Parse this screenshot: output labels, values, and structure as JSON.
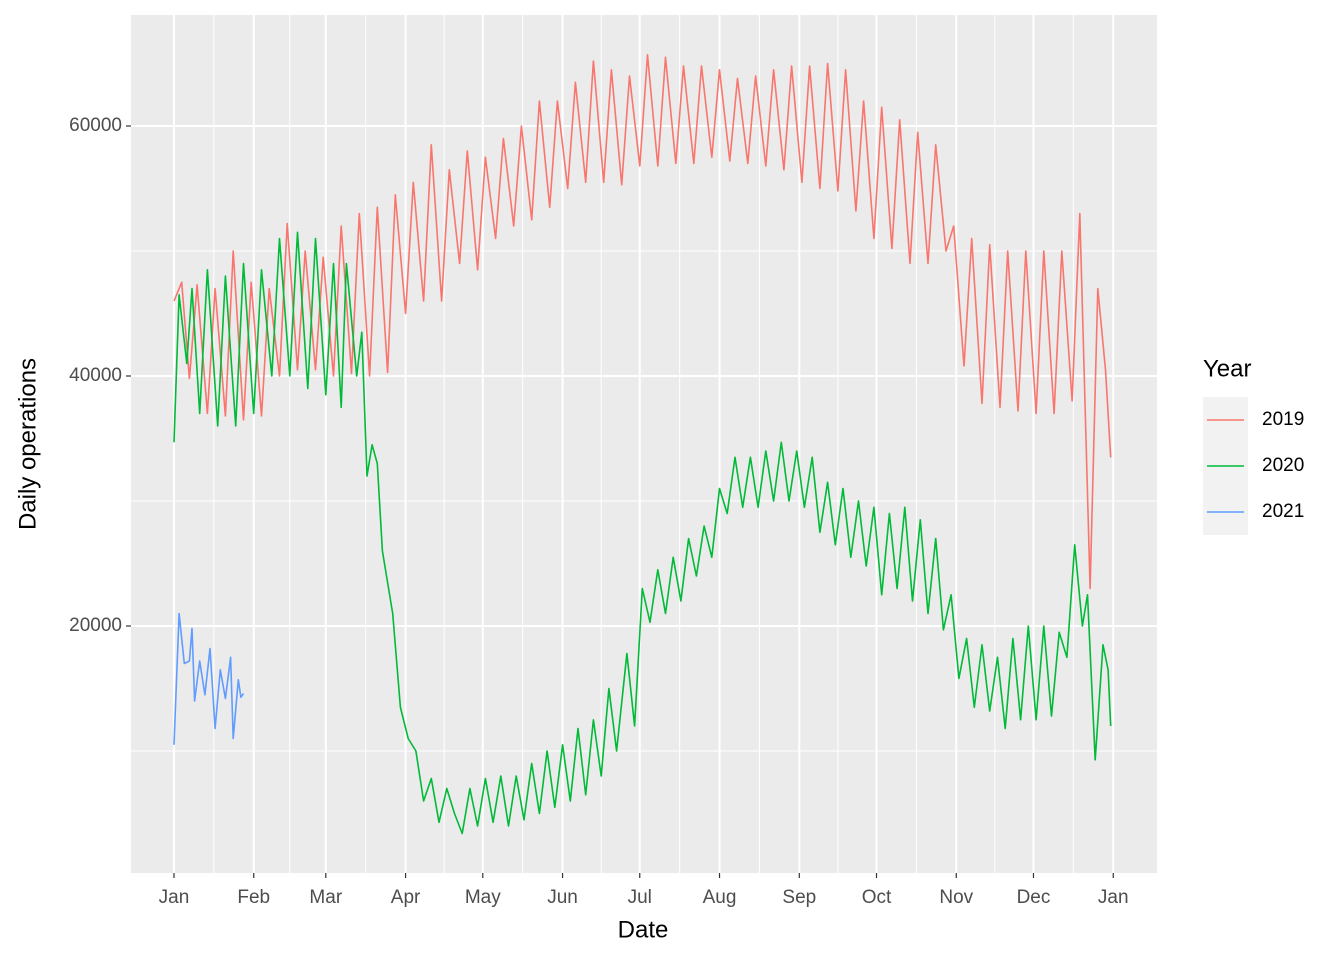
{
  "chart_data": {
    "type": "line",
    "x_label": "Date",
    "y_label": "Daily operations",
    "legend_title": "Year",
    "xlim": [
      -15.7,
      383
    ],
    "ylim": [
      240,
      68880
    ],
    "xticks": [
      {
        "value": 1,
        "label": "Jan"
      },
      {
        "value": 32,
        "label": "Feb"
      },
      {
        "value": 60,
        "label": "Mar"
      },
      {
        "value": 91,
        "label": "Apr"
      },
      {
        "value": 121,
        "label": "May"
      },
      {
        "value": 152,
        "label": "Jun"
      },
      {
        "value": 182,
        "label": "Jul"
      },
      {
        "value": 213,
        "label": "Aug"
      },
      {
        "value": 244,
        "label": "Sep"
      },
      {
        "value": 274,
        "label": "Oct"
      },
      {
        "value": 305,
        "label": "Nov"
      },
      {
        "value": 335,
        "label": "Dec"
      },
      {
        "value": 366,
        "label": "Jan"
      }
    ],
    "yticks": [
      20000,
      40000,
      60000
    ],
    "grid": true,
    "legend_position": "right",
    "series": [
      {
        "name": "2019",
        "color": "#F8766D",
        "x": [
          1,
          4,
          7,
          10,
          14,
          17,
          21,
          24,
          28,
          31,
          35,
          38,
          42,
          45,
          49,
          52,
          56,
          59,
          63,
          66,
          70,
          73,
          77,
          80,
          84,
          87,
          91,
          94,
          98,
          101,
          105,
          108,
          112,
          115,
          119,
          122,
          126,
          129,
          133,
          136,
          140,
          143,
          147,
          150,
          154,
          157,
          161,
          164,
          168,
          171,
          175,
          178,
          182,
          185,
          189,
          192,
          196,
          199,
          203,
          206,
          210,
          213,
          217,
          220,
          224,
          227,
          231,
          234,
          238,
          241,
          245,
          248,
          252,
          255,
          259,
          262,
          266,
          269,
          273,
          276,
          280,
          283,
          287,
          290,
          294,
          297,
          301,
          304,
          308,
          311,
          315,
          318,
          322,
          325,
          329,
          332,
          336,
          339,
          343,
          346,
          350,
          353,
          357,
          360,
          363,
          365
        ],
        "values": [
          46000,
          47500,
          39800,
          47300,
          37000,
          47000,
          36800,
          50000,
          36500,
          47500,
          36800,
          47000,
          40000,
          52200,
          40500,
          50000,
          40500,
          49500,
          40000,
          52000,
          40200,
          53000,
          40000,
          53500,
          40300,
          54500,
          45000,
          55500,
          46000,
          58500,
          46000,
          56500,
          49000,
          58000,
          48500,
          57500,
          51000,
          59000,
          52000,
          60000,
          52500,
          62000,
          53500,
          62000,
          55000,
          63500,
          55500,
          65200,
          55500,
          64500,
          55300,
          64000,
          56800,
          65700,
          56800,
          65500,
          57000,
          64800,
          57000,
          64800,
          57500,
          64500,
          57200,
          63800,
          57000,
          64000,
          56800,
          64500,
          56500,
          64800,
          55500,
          64800,
          55000,
          65000,
          54800,
          64500,
          53200,
          62000,
          51000,
          61500,
          50200,
          60500,
          49000,
          59500,
          49000,
          58500,
          50000,
          52000,
          40800,
          51000,
          37800,
          50500,
          37500,
          50000,
          37200,
          50000,
          37000,
          50000,
          37000,
          50000,
          38000,
          53000,
          23000,
          47000,
          40500,
          33500
        ]
      },
      {
        "name": "2020",
        "color": "#00BA38",
        "x": [
          1,
          3,
          6,
          8,
          11,
          14,
          18,
          21,
          25,
          28,
          32,
          35,
          39,
          42,
          46,
          49,
          53,
          56,
          60,
          63,
          66,
          68,
          72,
          74,
          76,
          78,
          80,
          82,
          86,
          89,
          92,
          95,
          98,
          101,
          104,
          107,
          110,
          113,
          116,
          119,
          122,
          125,
          128,
          131,
          134,
          137,
          140,
          143,
          146,
          149,
          152,
          155,
          158,
          161,
          164,
          167,
          170,
          173,
          177,
          180,
          183,
          186,
          189,
          192,
          195,
          198,
          201,
          204,
          207,
          210,
          213,
          216,
          219,
          222,
          225,
          228,
          231,
          234,
          237,
          240,
          243,
          246,
          249,
          252,
          255,
          258,
          261,
          264,
          267,
          270,
          273,
          276,
          279,
          282,
          285,
          288,
          291,
          294,
          297,
          300,
          303,
          306,
          309,
          312,
          315,
          318,
          321,
          324,
          327,
          330,
          333,
          336,
          339,
          342,
          345,
          348,
          351,
          354,
          356,
          359,
          362,
          364,
          365
        ],
        "values": [
          34700,
          46500,
          41000,
          47000,
          37000,
          48500,
          36000,
          48000,
          36000,
          49000,
          37000,
          48500,
          40000,
          51000,
          40000,
          51500,
          39000,
          51000,
          38500,
          49000,
          37500,
          49000,
          40000,
          43500,
          32000,
          34500,
          33000,
          26000,
          21000,
          13500,
          11000,
          10000,
          6000,
          7800,
          4300,
          7000,
          5000,
          3400,
          7000,
          4000,
          7800,
          4300,
          8000,
          4000,
          8000,
          4500,
          9000,
          5000,
          10000,
          5500,
          10500,
          6000,
          11800,
          6500,
          12500,
          8000,
          15000,
          10000,
          17800,
          12000,
          23000,
          20300,
          24500,
          21000,
          25500,
          22000,
          27000,
          24000,
          28000,
          25500,
          31000,
          29000,
          33500,
          29500,
          33500,
          29500,
          34000,
          30000,
          34700,
          30000,
          34000,
          29500,
          33500,
          27500,
          31500,
          26500,
          31000,
          25500,
          30000,
          24800,
          29500,
          22500,
          29000,
          23000,
          29500,
          22000,
          28500,
          21000,
          27000,
          19700,
          22500,
          15800,
          19000,
          13500,
          18500,
          13200,
          17500,
          11800,
          19000,
          12500,
          20000,
          12500,
          20000,
          12800,
          19500,
          17500,
          26500,
          20000,
          22500,
          9300,
          18500,
          16500,
          12000
        ]
      },
      {
        "name": "2021",
        "color": "#619CFF",
        "x": [
          1,
          3,
          5,
          7,
          8,
          9,
          11,
          13,
          15,
          17,
          19,
          21,
          23,
          24,
          26,
          27,
          28
        ],
        "values": [
          10500,
          21000,
          17000,
          17200,
          19800,
          14000,
          17200,
          14500,
          18200,
          11800,
          16500,
          14200,
          17500,
          11000,
          15700,
          14300,
          14600
        ]
      }
    ]
  }
}
